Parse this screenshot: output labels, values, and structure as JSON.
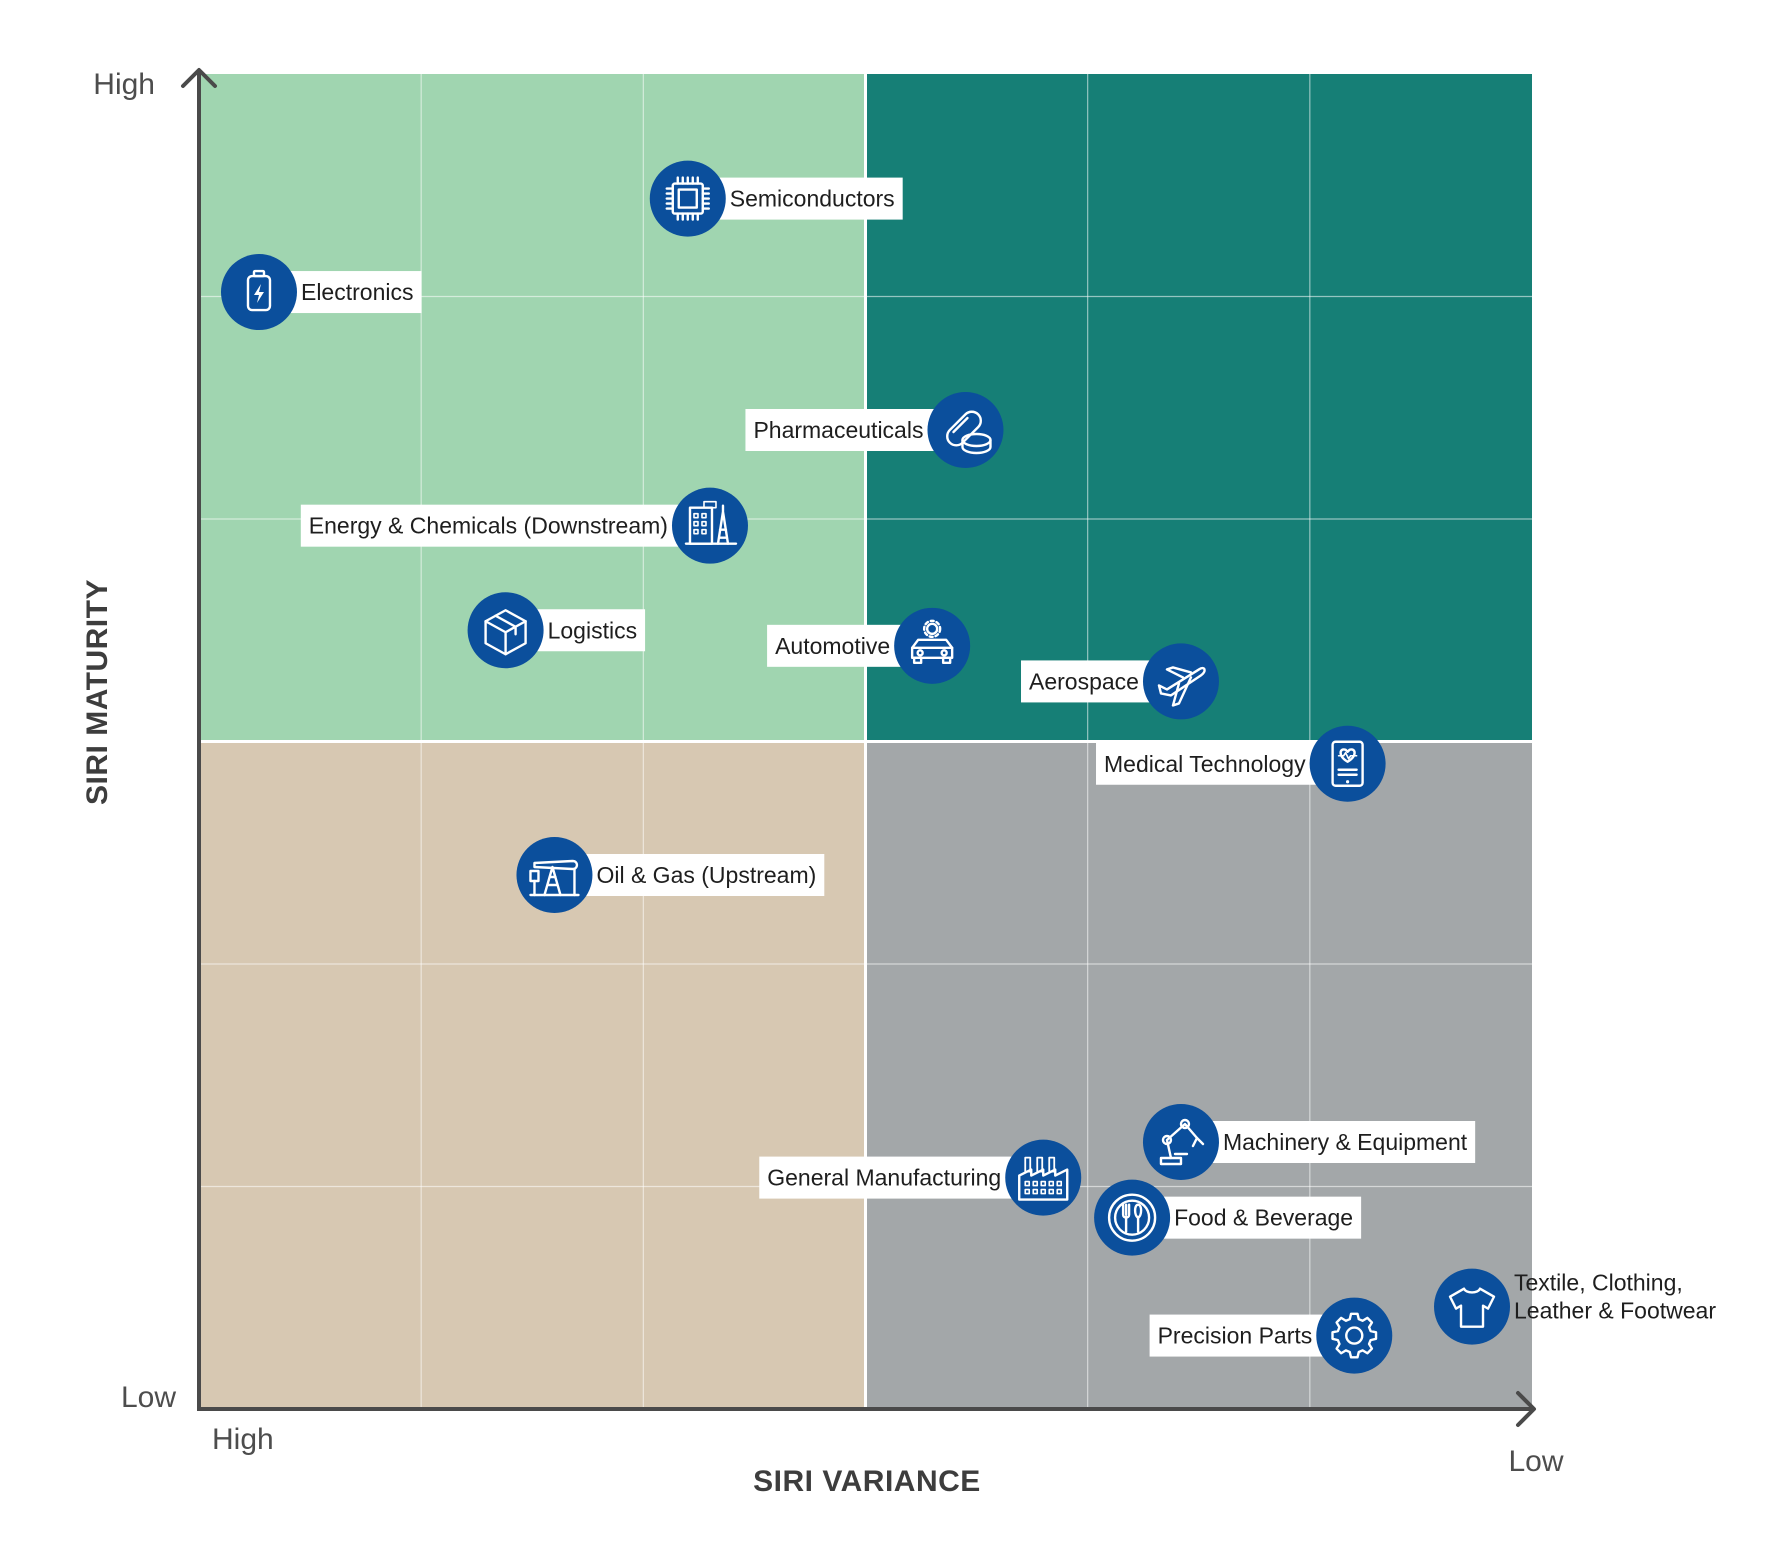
{
  "chart_data": {
    "type": "scatter",
    "title": "",
    "xlabel": "SIRI VARIANCE",
    "ylabel": "SIRI MATURITY",
    "x_axis": {
      "start_label": "High",
      "end_label": "Low",
      "direction": "high-to-low",
      "range": [
        0,
        6
      ]
    },
    "y_axis": {
      "start_label": "Low",
      "end_label": "High",
      "range": [
        0,
        6
      ]
    },
    "grid": true,
    "quadrants": [
      {
        "name": "top-left",
        "color": "#a0d5b0"
      },
      {
        "name": "top-right",
        "color": "#167f76"
      },
      {
        "name": "bottom-left",
        "color": "#d7c8b2"
      },
      {
        "name": "bottom-right",
        "color": "#a3a7a9"
      }
    ],
    "marker_color": "#0b4f9c",
    "points": [
      {
        "label": "Semiconductors",
        "icon": "chip-icon",
        "x": 2.2,
        "y": 5.44,
        "label_side": "right"
      },
      {
        "label": "Electronics",
        "icon": "battery-icon",
        "x": 0.27,
        "y": 5.02,
        "label_side": "right"
      },
      {
        "label": "Pharmaceuticals",
        "icon": "pills-icon",
        "x": 3.45,
        "y": 4.4,
        "label_side": "left"
      },
      {
        "label": "Energy & Chemicals (Downstream)",
        "icon": "refinery-icon",
        "x": 2.3,
        "y": 3.97,
        "label_side": "left"
      },
      {
        "label": "Logistics",
        "icon": "box-icon",
        "x": 1.38,
        "y": 3.5,
        "label_side": "right"
      },
      {
        "label": "Automotive",
        "icon": "car-icon",
        "x": 3.3,
        "y": 3.43,
        "label_side": "left"
      },
      {
        "label": "Aerospace",
        "icon": "airplane-icon",
        "x": 4.42,
        "y": 3.27,
        "label_side": "left"
      },
      {
        "label": "Medical Technology",
        "icon": "medical-tablet-icon",
        "x": 5.17,
        "y": 2.9,
        "label_side": "left"
      },
      {
        "label": "Oil & Gas (Upstream)",
        "icon": "oil-pump-icon",
        "x": 1.6,
        "y": 2.4,
        "label_side": "right"
      },
      {
        "label": "Machinery & Equipment",
        "icon": "robot-arm-icon",
        "x": 4.42,
        "y": 1.2,
        "label_side": "right"
      },
      {
        "label": "General Manufacturing",
        "icon": "factory-icon",
        "x": 3.8,
        "y": 1.04,
        "label_side": "left"
      },
      {
        "label": "Food & Beverage",
        "icon": "cutlery-icon",
        "x": 4.2,
        "y": 0.86,
        "label_side": "right"
      },
      {
        "label": "Textile, Clothing, Leather & Footwear",
        "label_lines": [
          "Textile, Clothing,",
          "Leather & Footwear"
        ],
        "icon": "tshirt-icon",
        "x": 5.73,
        "y": 0.46,
        "label_side": "right"
      },
      {
        "label": "Precision Parts",
        "icon": "gear-icon",
        "x": 5.2,
        "y": 0.33,
        "label_side": "left"
      }
    ]
  }
}
